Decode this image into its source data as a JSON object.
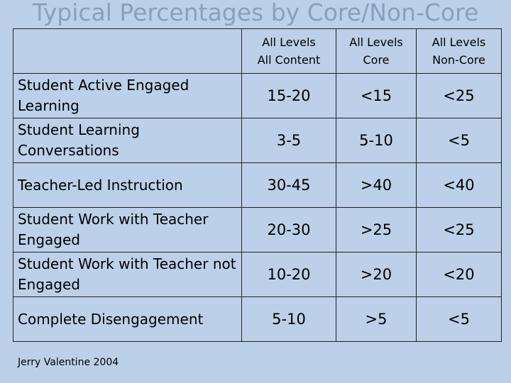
{
  "title": "Typical Percentages by Core/Non-Core",
  "columns": [
    {
      "line1": "All Levels",
      "line2": "All Content"
    },
    {
      "line1": "All Levels",
      "line2": "Core"
    },
    {
      "line1": "All Levels",
      "line2": "Non-Core"
    }
  ],
  "rows": [
    {
      "label": "Student Active Engaged Learning",
      "values": [
        "15-20",
        "<15",
        "<25"
      ]
    },
    {
      "label": "Student Learning Conversations",
      "values": [
        "3-5",
        "5-10",
        "<5"
      ]
    },
    {
      "label": "Teacher-Led Instruction",
      "values": [
        "30-45",
        ">40",
        "<40"
      ]
    },
    {
      "label": "Student Work with Teacher Engaged",
      "values": [
        "20-30",
        ">25",
        "<25"
      ]
    },
    {
      "label": "Student Work with Teacher not Engaged",
      "values": [
        "10-20",
        ">20",
        "<20"
      ]
    },
    {
      "label": "Complete Disengagement",
      "values": [
        "5-10",
        ">5",
        "<5"
      ]
    }
  ],
  "footer": {
    "author": "Jerry Valentine 2004"
  }
}
